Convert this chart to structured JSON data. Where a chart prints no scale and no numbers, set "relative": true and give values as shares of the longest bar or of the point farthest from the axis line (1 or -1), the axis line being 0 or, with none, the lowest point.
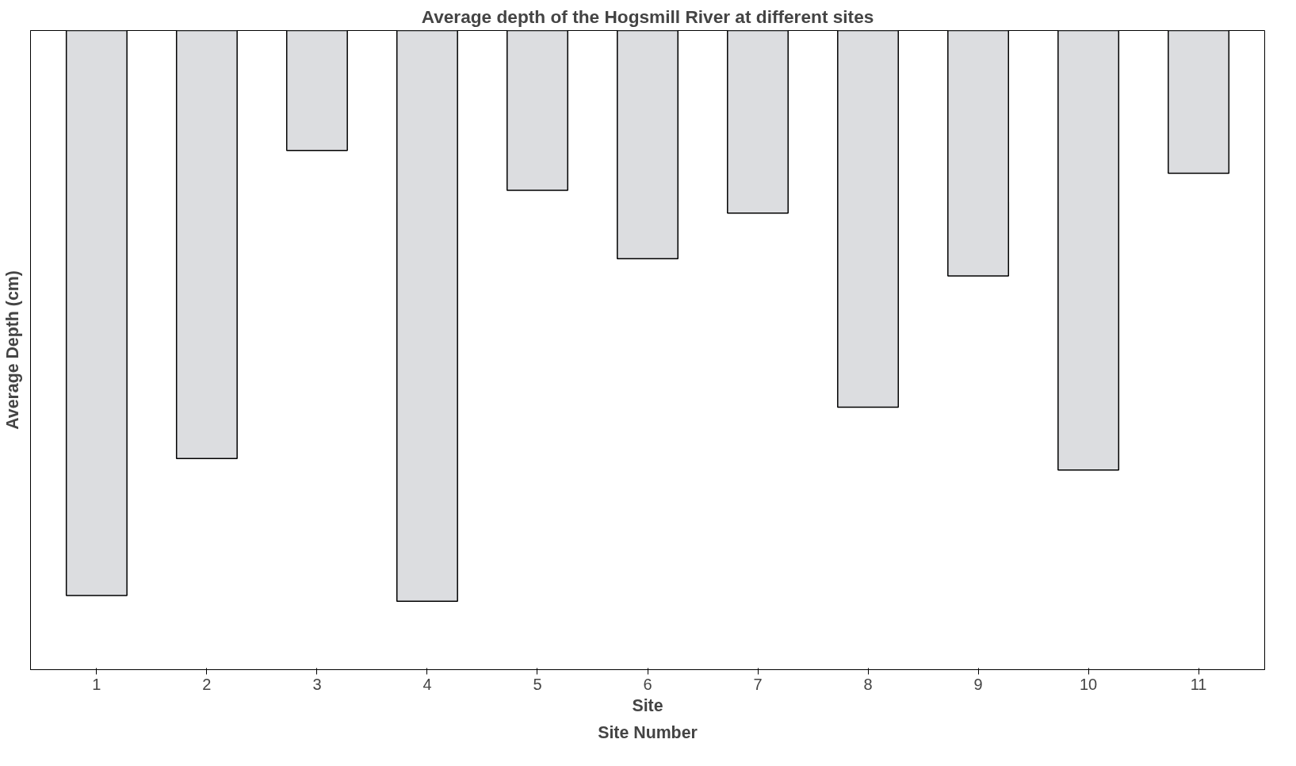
{
  "chart_data": {
    "type": "bar",
    "title": "Average depth of the Hogsmill River at different sites",
    "xlabel": "Site",
    "ylabel": "Average Depth (cm)",
    "annotations": [
      "Site Number"
    ],
    "categories": [
      "1",
      "2",
      "3",
      "4",
      "5",
      "6",
      "7",
      "8",
      "9",
      "10",
      "11"
    ],
    "values": [
      -0.99,
      -0.75,
      -0.21,
      -1,
      -0.28,
      -0.4,
      -0.32,
      -0.66,
      -0.43,
      -0.77,
      -0.25
    ],
    "color": "#dcdde0",
    "relative": true
  }
}
